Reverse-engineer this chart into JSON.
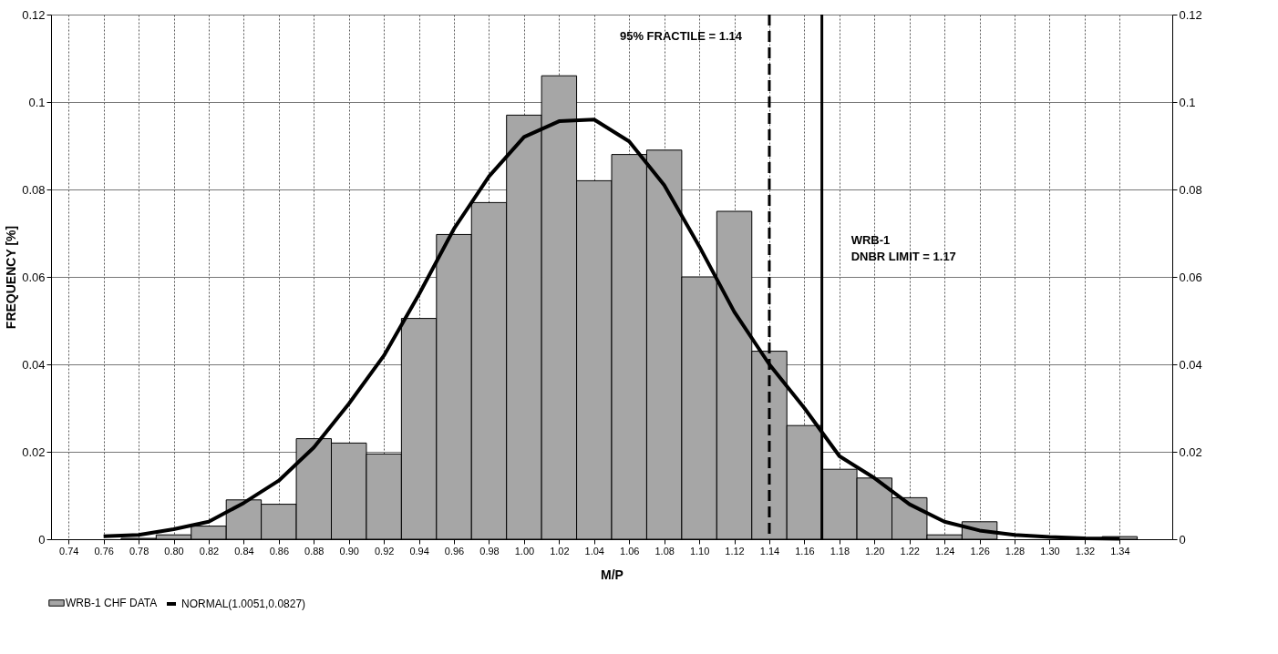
{
  "chart_data": {
    "type": "histogram",
    "xlabel": "M/P",
    "ylabel": "FREQUENCY [%]",
    "bins": [
      0.73,
      0.75,
      0.77,
      0.79,
      0.81,
      0.83,
      0.85,
      0.87,
      0.89,
      0.91,
      0.93,
      0.95,
      0.97,
      0.99,
      1.01,
      1.03,
      1.05,
      1.07,
      1.09,
      1.11,
      1.13,
      1.15,
      1.17,
      1.19,
      1.21,
      1.23,
      1.25,
      1.27,
      1.29,
      1.31,
      1.33,
      1.35
    ],
    "series": [
      {
        "name": "WRB-1 CHF DATA",
        "color": "#a6a6a6",
        "values": [
          0,
          0,
          0.0002,
          0.001,
          0.003,
          0.009,
          0.008,
          0.023,
          0.022,
          0.0195,
          0.0505,
          0.0697,
          0.077,
          0.097,
          0.106,
          0.082,
          0.088,
          0.089,
          0.06,
          0.075,
          0.043,
          0.026,
          0.016,
          0.014,
          0.0095,
          0.001,
          0.004,
          0,
          0,
          0,
          0.0006
        ]
      },
      {
        "name": "NORMAL(1.0051,0.0827)",
        "type": "line",
        "color": "#000000",
        "x": [
          0.76,
          0.78,
          0.8,
          0.82,
          0.84,
          0.86,
          0.88,
          0.9,
          0.92,
          0.94,
          0.96,
          0.98,
          1.0,
          1.02,
          1.04,
          1.06,
          1.08,
          1.1,
          1.12,
          1.14,
          1.16,
          1.18,
          1.2,
          1.22,
          1.24,
          1.26,
          1.28,
          1.3,
          1.32,
          1.34
        ],
        "values": [
          0.0007,
          0.001,
          0.0023,
          0.004,
          0.0083,
          0.0134,
          0.021,
          0.031,
          0.042,
          0.056,
          0.071,
          0.083,
          0.092,
          0.0956,
          0.096,
          0.091,
          0.081,
          0.067,
          0.052,
          0.04,
          0.03,
          0.019,
          0.014,
          0.008,
          0.004,
          0.002,
          0.001,
          0.0005,
          0.0002,
          0.0001
        ]
      }
    ],
    "xlim": [
      0.73,
      1.37
    ],
    "xticks": [
      {
        "value": 0.74,
        "label": "0.74"
      },
      {
        "value": 0.76,
        "label": "0.76"
      },
      {
        "value": 0.78,
        "label": "0.78"
      },
      {
        "value": 0.8,
        "label": "0.80"
      },
      {
        "value": 0.82,
        "label": "0.82"
      },
      {
        "value": 0.84,
        "label": "0.84"
      },
      {
        "value": 0.86,
        "label": "0.86"
      },
      {
        "value": 0.88,
        "label": "0.88"
      },
      {
        "value": 0.9,
        "label": "0.90"
      },
      {
        "value": 0.92,
        "label": "0.92"
      },
      {
        "value": 0.94,
        "label": "0.94"
      },
      {
        "value": 0.96,
        "label": "0.96"
      },
      {
        "value": 0.98,
        "label": "0.98"
      },
      {
        "value": 1.0,
        "label": "1.00"
      },
      {
        "value": 1.02,
        "label": "1.02"
      },
      {
        "value": 1.04,
        "label": "1.04"
      },
      {
        "value": 1.06,
        "label": "1.06"
      },
      {
        "value": 1.08,
        "label": "1.08"
      },
      {
        "value": 1.1,
        "label": "1.10"
      },
      {
        "value": 1.12,
        "label": "1.12"
      },
      {
        "value": 1.14,
        "label": "1.14"
      },
      {
        "value": 1.16,
        "label": "1.16"
      },
      {
        "value": 1.18,
        "label": "1.18"
      },
      {
        "value": 1.2,
        "label": "1.20"
      },
      {
        "value": 1.22,
        "label": "1.22"
      },
      {
        "value": 1.24,
        "label": "1.24"
      },
      {
        "value": 1.26,
        "label": "1.26"
      },
      {
        "value": 1.28,
        "label": "1.28"
      },
      {
        "value": 1.3,
        "label": "1.30"
      },
      {
        "value": 1.32,
        "label": "1.32"
      },
      {
        "value": 1.34,
        "label": "1.34"
      }
    ],
    "ylim": [
      0,
      0.12
    ],
    "yticks": [
      0,
      0.02,
      0.04,
      0.06,
      0.08,
      0.1,
      0.12
    ],
    "y2lim": [
      0,
      0.12
    ],
    "y2ticks": [
      0,
      0.02,
      0.04,
      0.06,
      0.08,
      0.1,
      0.12
    ],
    "ref_lines": [
      {
        "axis": "x",
        "value": 1.14,
        "label": "95% FRACTILE = 1.14",
        "line_style": "dashed",
        "color": "#000000"
      },
      {
        "axis": "x",
        "value": 1.17,
        "label": "WRB-1\nDNBR LIMIT = 1.17",
        "line_style": "solid",
        "color": "#000000"
      }
    ],
    "grid": true,
    "legend": "bottom"
  }
}
